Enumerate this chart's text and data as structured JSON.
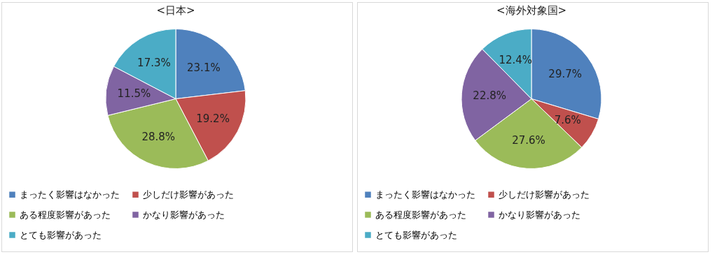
{
  "chart_data": [
    {
      "type": "pie",
      "title": "<日本>",
      "categories": [
        "まったく影響はなかった",
        "少しだけ影響があった",
        "ある程度影響があった",
        "かなり影響があった",
        "とても影響があった"
      ],
      "values": [
        23.1,
        19.2,
        28.8,
        11.5,
        17.3
      ],
      "value_labels": [
        "23.1%",
        "19.2%",
        "28.8%",
        "11.5%",
        "17.3%"
      ],
      "colors": [
        "#4f81bd",
        "#c0504d",
        "#9bbb59",
        "#8064a2",
        "#4bacc6"
      ],
      "legend": "bottom"
    },
    {
      "type": "pie",
      "title": "<海外対象国>",
      "categories": [
        "まったく影響はなかった",
        "少しだけ影響があった",
        "ある程度影響があった",
        "かなり影響があった",
        "とても影響があった"
      ],
      "values": [
        29.7,
        7.6,
        27.6,
        22.8,
        12.4
      ],
      "value_labels": [
        "29.7%",
        "7.6%",
        "27.6%",
        "22.8%",
        "12.4%"
      ],
      "colors": [
        "#4f81bd",
        "#c0504d",
        "#9bbb59",
        "#8064a2",
        "#4bacc6"
      ],
      "legend": "bottom"
    }
  ]
}
